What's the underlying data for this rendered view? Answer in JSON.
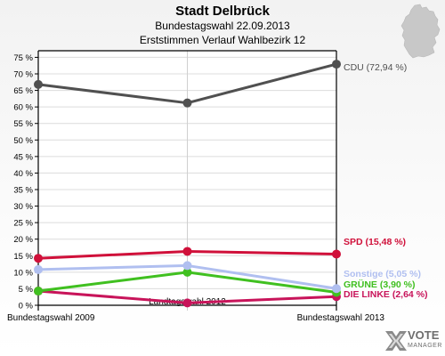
{
  "header": {
    "title": "Stadt Delbrück",
    "subtitle": "Bundestagswahl 22.09.2013",
    "subtitle2": "Erststimmen Verlauf Wahlbezirk 12"
  },
  "logo": {
    "line1": "VOTE",
    "line2": "MANAGER",
    "icon": "votemanager-x-icon"
  },
  "map": {
    "icon": "germany-map-icon",
    "color": "#c8c8c8"
  },
  "chart_data": {
    "type": "line",
    "categories": [
      "Bundestagswahl 2009",
      "Landtagswahl 2012",
      "Bundestagswahl 2013"
    ],
    "ylim": [
      0,
      77
    ],
    "yticks": [
      0,
      5,
      10,
      15,
      20,
      25,
      30,
      35,
      40,
      45,
      50,
      55,
      60,
      65,
      70,
      75
    ],
    "ytick_labels": [
      "0 %",
      "5 %",
      "10 %",
      "15 %",
      "20 %",
      "25 %",
      "30 %",
      "35 %",
      "40 %",
      "45 %",
      "50 %",
      "55 %",
      "60 %",
      "65 %",
      "70 %",
      "75 %"
    ],
    "grid": true,
    "series": [
      {
        "name": "CDU",
        "label": "CDU (72,94 %)",
        "color": "#505050",
        "values": [
          66.8,
          61.2,
          72.94
        ]
      },
      {
        "name": "SPD",
        "label": "SPD (15,48 %)",
        "color": "#d0103a",
        "values": [
          14.2,
          16.3,
          15.48
        ]
      },
      {
        "name": "Sonstige",
        "label": "Sonstige (5,05 %)",
        "color": "#b0bff0",
        "values": [
          10.8,
          12.0,
          5.05
        ]
      },
      {
        "name": "GRÜNE",
        "label": "GRÜNE (3,90 %)",
        "color": "#40c020",
        "values": [
          4.3,
          10.0,
          3.9
        ]
      },
      {
        "name": "DIE LINKE",
        "label": "DIE LINKE (2,64 %)",
        "color": "#c8145a",
        "values": [
          4.3,
          0.7,
          2.64
        ]
      }
    ]
  }
}
